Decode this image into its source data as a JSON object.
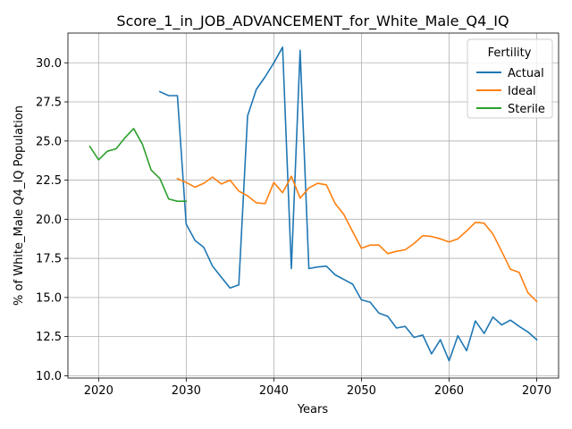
{
  "chart_data": {
    "type": "line",
    "title": "Score_1_in_JOB_ADVANCEMENT_for_White_Male_Q4_IQ",
    "xlabel": "Years",
    "ylabel": "% of White_Male Q4_IQ Population",
    "xlim": [
      2016.5,
      2072.5
    ],
    "ylim": [
      9.85,
      31.9
    ],
    "xticks": [
      2020,
      2030,
      2040,
      2050,
      2060,
      2070
    ],
    "xtick_labels": [
      "2020",
      "2030",
      "2040",
      "2050",
      "2060",
      "2070"
    ],
    "yticks": [
      10.0,
      12.5,
      15.0,
      17.5,
      20.0,
      22.5,
      25.0,
      27.5,
      30.0
    ],
    "ytick_labels": [
      "10.0",
      "12.5",
      "15.0",
      "17.5",
      "20.0",
      "22.5",
      "25.0",
      "27.5",
      "30.0"
    ],
    "grid": true,
    "legend": {
      "title": "Fertility",
      "position": "top-right"
    },
    "series": [
      {
        "name": "Actual",
        "color": "#1f77b4",
        "x": [
          2027,
          2028,
          2029,
          2030,
          2031,
          2032,
          2033,
          2034,
          2035,
          2036,
          2037,
          2038,
          2039,
          2040,
          2041,
          2042,
          2043,
          2044,
          2045,
          2046,
          2047,
          2048,
          2049,
          2050,
          2051,
          2052,
          2053,
          2054,
          2055,
          2056,
          2057,
          2058,
          2059,
          2060,
          2061,
          2062,
          2063,
          2064,
          2065,
          2066,
          2067,
          2068,
          2069,
          2070
        ],
        "y": [
          28.15,
          27.9,
          27.9,
          19.7,
          18.65,
          18.2,
          17.0,
          16.3,
          15.6,
          15.8,
          26.6,
          28.3,
          29.1,
          30.0,
          31.0,
          16.85,
          30.8,
          16.85,
          16.95,
          17.0,
          16.45,
          16.15,
          15.85,
          14.85,
          14.7,
          14.0,
          13.8,
          13.05,
          13.15,
          12.45,
          12.6,
          11.4,
          12.3,
          10.95,
          12.55,
          11.6,
          13.5,
          12.7,
          13.75,
          13.25,
          13.55,
          13.15,
          12.8,
          12.3
        ]
      },
      {
        "name": "Ideal",
        "color": "#ff7f0e",
        "x": [
          2029,
          2030,
          2031,
          2032,
          2033,
          2034,
          2035,
          2036,
          2037,
          2038,
          2039,
          2040,
          2041,
          2042,
          2043,
          2044,
          2045,
          2046,
          2047,
          2048,
          2049,
          2050,
          2051,
          2052,
          2053,
          2054,
          2055,
          2056,
          2057,
          2058,
          2059,
          2060,
          2061,
          2062,
          2063,
          2064,
          2065,
          2066,
          2067,
          2068,
          2069,
          2070
        ],
        "y": [
          22.6,
          22.35,
          22.05,
          22.3,
          22.7,
          22.25,
          22.5,
          21.8,
          21.5,
          21.05,
          21.0,
          22.35,
          21.7,
          22.75,
          21.35,
          22.0,
          22.3,
          22.2,
          21.0,
          20.3,
          19.2,
          18.15,
          18.35,
          18.35,
          17.8,
          17.95,
          18.05,
          18.45,
          18.95,
          18.9,
          18.75,
          18.55,
          18.75,
          19.25,
          19.8,
          19.75,
          19.05,
          17.95,
          16.8,
          16.6,
          15.3,
          14.75
        ]
      },
      {
        "name": "Sterile",
        "color": "#2ca02c",
        "x": [
          2019,
          2020,
          2021,
          2022,
          2023,
          2024,
          2025,
          2026,
          2027,
          2028,
          2029,
          2030
        ],
        "y": [
          24.65,
          23.8,
          24.35,
          24.5,
          25.2,
          25.8,
          24.8,
          23.15,
          22.6,
          21.3,
          21.15,
          21.15
        ]
      }
    ]
  }
}
